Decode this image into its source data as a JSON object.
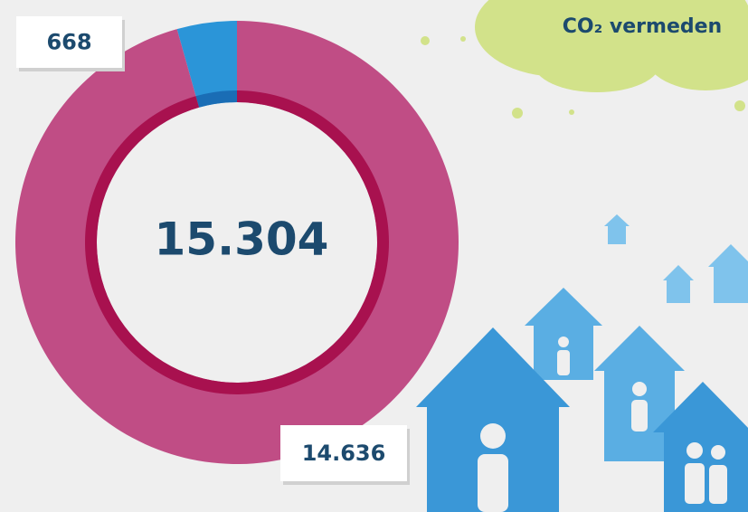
{
  "chart_data": {
    "type": "pie",
    "values": [
      668,
      14636
    ],
    "value_labels": [
      "668",
      "14.636"
    ],
    "colors": [
      "#2b95d8",
      "#c04d85"
    ],
    "ring_colors": [
      "#1a6db5",
      "#a8114f"
    ],
    "center_label": "15.304",
    "annotation": "CO₂ vermeden"
  }
}
